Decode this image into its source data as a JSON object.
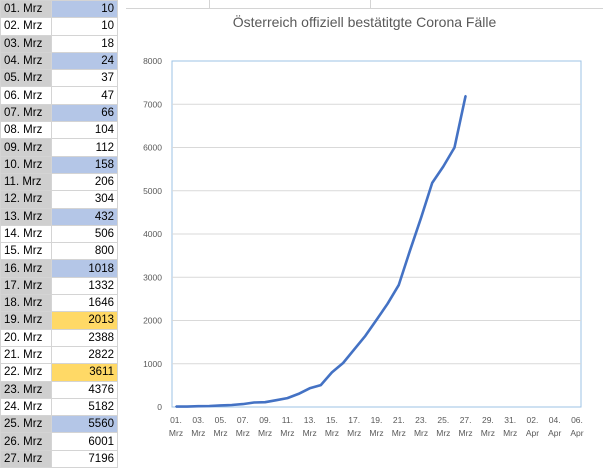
{
  "table": {
    "rows": [
      {
        "date": "01. Mrz",
        "value": "10",
        "date_bg": "grey",
        "value_bg": "blue"
      },
      {
        "date": "02. Mrz",
        "value": "10",
        "date_bg": "white",
        "value_bg": "white"
      },
      {
        "date": "03. Mrz",
        "value": "18",
        "date_bg": "grey",
        "value_bg": "white"
      },
      {
        "date": "04. Mrz",
        "value": "24",
        "date_bg": "grey",
        "value_bg": "blue"
      },
      {
        "date": "05. Mrz",
        "value": "37",
        "date_bg": "grey",
        "value_bg": "white"
      },
      {
        "date": "06. Mrz",
        "value": "47",
        "date_bg": "white",
        "value_bg": "white"
      },
      {
        "date": "07. Mrz",
        "value": "66",
        "date_bg": "grey",
        "value_bg": "blue"
      },
      {
        "date": "08. Mrz",
        "value": "104",
        "date_bg": "white",
        "value_bg": "white"
      },
      {
        "date": "09. Mrz",
        "value": "112",
        "date_bg": "grey",
        "value_bg": "white"
      },
      {
        "date": "10. Mrz",
        "value": "158",
        "date_bg": "grey",
        "value_bg": "blue"
      },
      {
        "date": "11. Mrz",
        "value": "206",
        "date_bg": "grey",
        "value_bg": "white"
      },
      {
        "date": "12. Mrz",
        "value": "304",
        "date_bg": "grey",
        "value_bg": "white"
      },
      {
        "date": "13. Mrz",
        "value": "432",
        "date_bg": "grey",
        "value_bg": "blue"
      },
      {
        "date": "14. Mrz",
        "value": "506",
        "date_bg": "white",
        "value_bg": "white"
      },
      {
        "date": "15. Mrz",
        "value": "800",
        "date_bg": "white",
        "value_bg": "white"
      },
      {
        "date": "16. Mrz",
        "value": "1018",
        "date_bg": "grey",
        "value_bg": "blue"
      },
      {
        "date": "17. Mrz",
        "value": "1332",
        "date_bg": "grey",
        "value_bg": "white"
      },
      {
        "date": "18. Mrz",
        "value": "1646",
        "date_bg": "grey",
        "value_bg": "white"
      },
      {
        "date": "19. Mrz",
        "value": "2013",
        "date_bg": "grey",
        "value_bg": "yellow"
      },
      {
        "date": "20. Mrz",
        "value": "2388",
        "date_bg": "white",
        "value_bg": "white"
      },
      {
        "date": "21. Mrz",
        "value": "2822",
        "date_bg": "white",
        "value_bg": "white"
      },
      {
        "date": "22. Mrz",
        "value": "3611",
        "date_bg": "white",
        "value_bg": "yellow"
      },
      {
        "date": "23. Mrz",
        "value": "4376",
        "date_bg": "grey",
        "value_bg": "white"
      },
      {
        "date": "24. Mrz",
        "value": "5182",
        "date_bg": "white",
        "value_bg": "white"
      },
      {
        "date": "25. Mrz",
        "value": "5560",
        "date_bg": "grey",
        "value_bg": "blue"
      },
      {
        "date": "26. Mrz",
        "value": "6001",
        "date_bg": "grey",
        "value_bg": "white"
      },
      {
        "date": "27. Mrz",
        "value": "7196",
        "date_bg": "grey",
        "value_bg": "white"
      }
    ]
  },
  "colors": {
    "line": "#4472c4",
    "plot_border": "#9dc3e6",
    "gridline": "#d9d9d9",
    "cell_blue": "#b4c6e7",
    "cell_yellow": "#ffd966",
    "cell_grey": "#cfcfcf"
  },
  "chart_data": {
    "type": "line",
    "title": "Österreich offiziell bestätitgte Corona Fälle",
    "xlabel": "",
    "ylabel": "",
    "ylim": [
      0,
      8000
    ],
    "yticks": [
      "0",
      "1000",
      "2000",
      "3000",
      "4000",
      "5000",
      "6000",
      "7000",
      "8000"
    ],
    "x_tick_labels": [
      [
        "01.",
        "Mrz"
      ],
      [
        "03.",
        "Mrz"
      ],
      [
        "05.",
        "Mrz"
      ],
      [
        "07.",
        "Mrz"
      ],
      [
        "09.",
        "Mrz"
      ],
      [
        "11.",
        "Mrz"
      ],
      [
        "13.",
        "Mrz"
      ],
      [
        "15.",
        "Mrz"
      ],
      [
        "17.",
        "Mrz"
      ],
      [
        "19.",
        "Mrz"
      ],
      [
        "21.",
        "Mrz"
      ],
      [
        "23.",
        "Mrz"
      ],
      [
        "25.",
        "Mrz"
      ],
      [
        "27.",
        "Mrz"
      ],
      [
        "29.",
        "Mrz"
      ],
      [
        "31.",
        "Mrz"
      ],
      [
        "02.",
        "Apr"
      ],
      [
        "04.",
        "Apr"
      ],
      [
        "06.",
        "Apr"
      ]
    ],
    "x_range": [
      "01. Mrz",
      "06. Apr"
    ],
    "grid": true,
    "legend": "none",
    "series": [
      {
        "x": [
          "01. Mrz",
          "02. Mrz",
          "03. Mrz",
          "04. Mrz",
          "05. Mrz",
          "06. Mrz",
          "07. Mrz",
          "08. Mrz",
          "09. Mrz",
          "10. Mrz",
          "11. Mrz",
          "12. Mrz",
          "13. Mrz",
          "14. Mrz",
          "15. Mrz",
          "16. Mrz",
          "17. Mrz",
          "18. Mrz",
          "19. Mrz",
          "20. Mrz",
          "21. Mrz",
          "22. Mrz",
          "23. Mrz",
          "24. Mrz",
          "25. Mrz",
          "26. Mrz",
          "27. Mrz"
        ],
        "values": [
          10,
          10,
          18,
          24,
          37,
          47,
          66,
          104,
          112,
          158,
          206,
          304,
          432,
          506,
          800,
          1018,
          1332,
          1646,
          2013,
          2388,
          2822,
          3611,
          4376,
          5182,
          5560,
          6001,
          7196
        ]
      }
    ]
  }
}
